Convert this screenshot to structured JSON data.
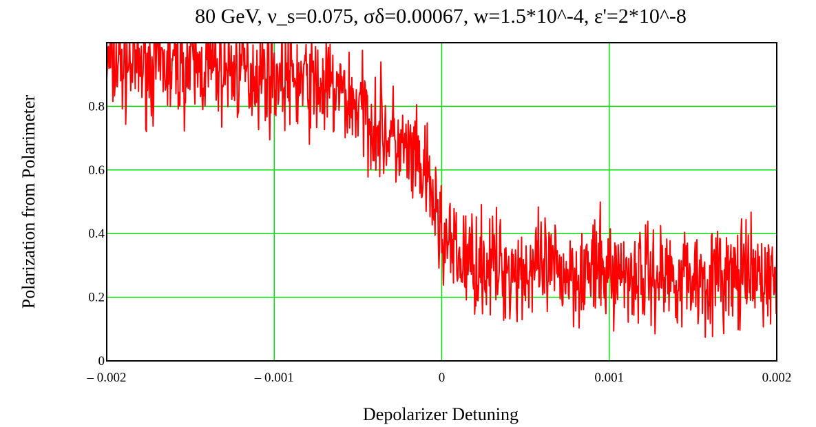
{
  "chart_data": {
    "type": "line",
    "title": "80 GeV,  ν_s=0.075,  σδ=0.00067, w=1.5*10^-4,  ε'=2*10^-8",
    "xlabel": "Depolarizer Detuning",
    "ylabel": "Polarization from Polarimeter",
    "xlim": [
      -0.002,
      0.002
    ],
    "ylim": [
      0,
      1
    ],
    "x_ticks": [
      {
        "value": -0.002,
        "label": "– 0.002"
      },
      {
        "value": -0.001,
        "label": "– 0.001"
      },
      {
        "value": 0,
        "label": "0"
      },
      {
        "value": 0.001,
        "label": "0.001"
      },
      {
        "value": 0.002,
        "label": "0.002"
      }
    ],
    "y_ticks": [
      {
        "value": 0,
        "label": "0"
      },
      {
        "value": 0.2,
        "label": "0.2"
      },
      {
        "value": 0.4,
        "label": "0.4"
      },
      {
        "value": 0.6,
        "label": "0.6"
      },
      {
        "value": 0.8,
        "label": "0.8"
      }
    ],
    "grid": true,
    "grid_color": "#00dd00",
    "series": [
      {
        "color": "#ff0000",
        "x": [
          -0.002,
          -0.0018,
          -0.0016,
          -0.0014,
          -0.0012,
          -0.001,
          -0.0008,
          -0.0006,
          -0.0005,
          -0.0004,
          -0.0003,
          -0.0002,
          -0.0001,
          -5e-05,
          0,
          5e-05,
          0.0001,
          0.0002,
          0.0004,
          0.0006,
          0.0008,
          0.001,
          0.0012,
          0.0014,
          0.0016,
          0.0018,
          0.002
        ],
        "values": [
          0.93,
          0.93,
          0.92,
          0.92,
          0.91,
          0.9,
          0.87,
          0.84,
          0.8,
          0.75,
          0.7,
          0.64,
          0.58,
          0.5,
          0.4,
          0.35,
          0.32,
          0.31,
          0.29,
          0.28,
          0.28,
          0.28,
          0.27,
          0.27,
          0.26,
          0.26,
          0.26
        ]
      }
    ]
  }
}
